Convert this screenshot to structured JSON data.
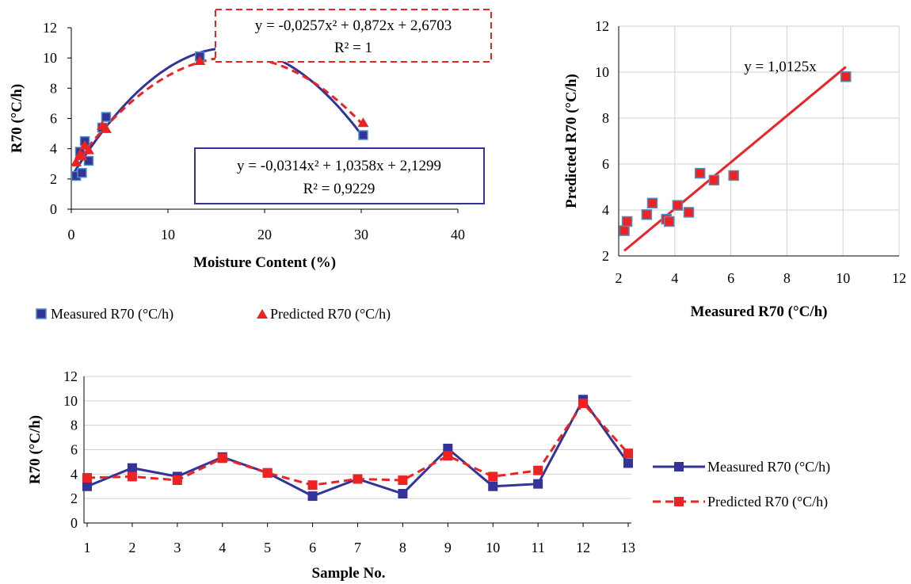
{
  "chart_data": [
    {
      "id": "moisture",
      "type": "scatter",
      "xlabel": "Moisture Content (%)",
      "ylabel": "R70 (°C/h)",
      "xlim": [
        0,
        40
      ],
      "ylim": [
        0,
        12
      ],
      "xticks": [
        0,
        10,
        20,
        30,
        40
      ],
      "yticks": [
        0,
        2,
        4,
        6,
        8,
        10,
        12
      ],
      "grid": false,
      "legend_position": "bottom",
      "series": [
        {
          "name": "Measured R70 (°C/h)",
          "color": "#333399",
          "marker": "square",
          "x": [
            0.5,
            0.9,
            1.1,
            1.4,
            1.8,
            3.2,
            3.6,
            13.3,
            30.2
          ],
          "y": [
            2.2,
            3.8,
            2.4,
            4.5,
            3.2,
            5.4,
            6.1,
            10.1,
            4.9
          ],
          "trend_label": "y = -0,0314x² + 1,0358x + 2,1299",
          "r2_label": "R² = 0,9229",
          "fit": [
            -0.0314,
            1.0358,
            2.1299
          ]
        },
        {
          "name": "Predicted R70 (°C/h)",
          "color": "#ee2222",
          "marker": "triangle",
          "x": [
            0.5,
            0.9,
            1.1,
            1.4,
            1.8,
            3.2,
            3.6,
            13.3,
            30.2
          ],
          "y": [
            3.1,
            3.6,
            3.5,
            4.2,
            3.9,
            5.5,
            5.3,
            9.8,
            5.7
          ],
          "trend_label": "y = -0,0257x² + 0,872x + 2,6703",
          "r2_label": "R² = 1",
          "fit": [
            -0.0257,
            0.872,
            2.6703
          ]
        }
      ]
    },
    {
      "id": "parity",
      "type": "scatter",
      "xlabel": "Measured R70 (°C/h)",
      "ylabel": "Predicted R70 (°C/h)",
      "xlim": [
        2,
        12
      ],
      "ylim": [
        2,
        12
      ],
      "xticks": [
        2,
        4,
        6,
        8,
        10,
        12
      ],
      "yticks": [
        2,
        4,
        6,
        8,
        10,
        12
      ],
      "grid": true,
      "trend_label": "y = 1,0125x",
      "trend_slope": 1.0125,
      "trend_x": [
        2.2,
        10.1
      ],
      "points": {
        "x": [
          2.2,
          2.3,
          3.0,
          3.2,
          3.7,
          3.8,
          4.1,
          4.5,
          4.9,
          5.4,
          6.1,
          10.1
        ],
        "y": [
          3.1,
          3.5,
          3.8,
          4.3,
          3.6,
          3.5,
          4.2,
          3.9,
          5.6,
          5.3,
          5.5,
          9.8
        ]
      }
    },
    {
      "id": "samples",
      "type": "line",
      "xlabel": "Sample No.",
      "ylabel": "R70 (°C/h)",
      "categories": [
        "1",
        "2",
        "3",
        "4",
        "5",
        "6",
        "7",
        "8",
        "9",
        "10",
        "11",
        "12",
        "13"
      ],
      "ylim": [
        0,
        12
      ],
      "yticks": [
        0,
        2,
        4,
        6,
        8,
        10,
        12
      ],
      "grid": true,
      "legend_position": "right",
      "series": [
        {
          "name": "Measured R70 (°C/h)",
          "color": "#333399",
          "style": "solid",
          "values": [
            3.0,
            4.5,
            3.8,
            5.4,
            4.1,
            2.2,
            3.6,
            2.4,
            6.1,
            3.0,
            3.2,
            10.1,
            4.9
          ]
        },
        {
          "name": "Predicted R70 (°C/h)",
          "color": "#ee2222",
          "style": "dashed",
          "values": [
            3.7,
            3.8,
            3.5,
            5.3,
            4.1,
            3.1,
            3.6,
            3.5,
            5.5,
            3.8,
            4.3,
            9.8,
            5.7
          ]
        }
      ]
    }
  ]
}
